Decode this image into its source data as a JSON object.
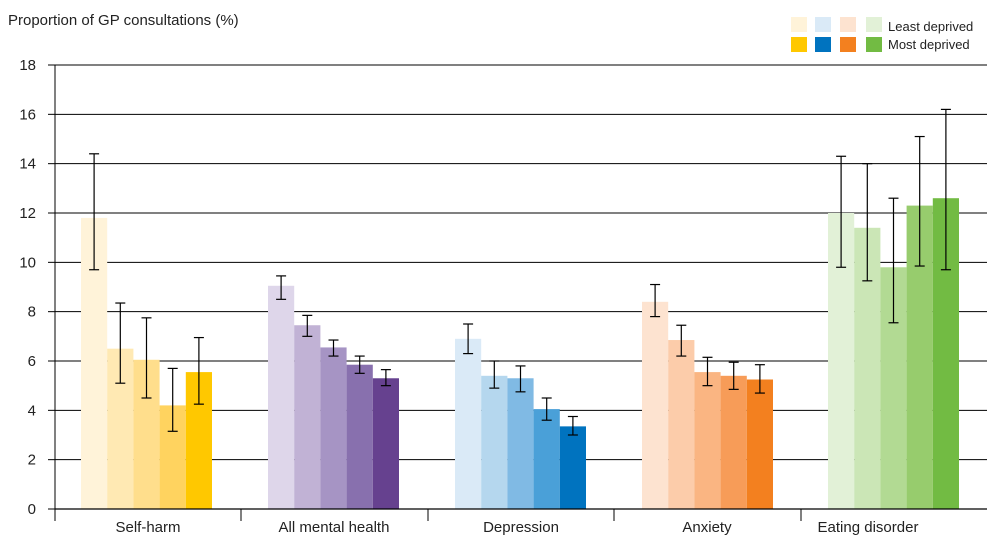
{
  "chart_data": {
    "type": "bar",
    "title": "",
    "ylabel": "Proportion of GP consultations (%)",
    "xlabel": "",
    "ylim": [
      0,
      18
    ],
    "yticks": [
      0,
      2,
      4,
      6,
      8,
      10,
      12,
      14,
      16,
      18
    ],
    "grid": "horizontal",
    "error_bars": true,
    "legend": {
      "placement": "top-right",
      "entries": [
        "Least deprived",
        "Most deprived"
      ]
    },
    "categories": [
      "Self-harm",
      "All mental health",
      "Depression",
      "Anxiety",
      "Eating disorder"
    ],
    "series_note": "five deprivation quintiles per category, light (least deprived) to dark (most deprived)",
    "groups": [
      {
        "category": "Self-harm",
        "colors": [
          "#fff3d9",
          "#ffe9b3",
          "#ffde8c",
          "#ffd35f",
          "#ffc800"
        ],
        "values": [
          11.8,
          6.5,
          6.05,
          4.2,
          5.55
        ],
        "error_low": [
          9.7,
          5.1,
          4.5,
          3.15,
          4.25
        ],
        "error_high": [
          14.4,
          8.35,
          7.75,
          5.7,
          6.95
        ]
      },
      {
        "category": "All mental health",
        "colors": [
          "#ded6ea",
          "#c1b2d5",
          "#a694c4",
          "#8870ae",
          "#66418f"
        ],
        "values": [
          9.05,
          7.45,
          6.55,
          5.85,
          5.3
        ],
        "error_low": [
          8.5,
          7.0,
          6.2,
          5.5,
          5.0
        ],
        "error_high": [
          9.45,
          7.85,
          6.85,
          6.2,
          5.65
        ]
      },
      {
        "category": "Depression",
        "colors": [
          "#daeaf7",
          "#b5d7ee",
          "#80bae4",
          "#4aa0d8",
          "#0073bf"
        ],
        "values": [
          6.9,
          5.4,
          5.3,
          4.05,
          3.35
        ],
        "error_low": [
          6.3,
          4.9,
          4.75,
          3.6,
          3.0
        ],
        "error_high": [
          7.5,
          6.0,
          5.8,
          4.5,
          3.75
        ]
      },
      {
        "category": "Anxiety",
        "colors": [
          "#fde3d0",
          "#fcccaa",
          "#fab582",
          "#f79c58",
          "#f3801f"
        ],
        "values": [
          8.4,
          6.85,
          5.55,
          5.4,
          5.25
        ],
        "error_low": [
          7.8,
          6.2,
          5.0,
          4.85,
          4.7
        ],
        "error_high": [
          9.1,
          7.45,
          6.15,
          5.95,
          5.85
        ]
      },
      {
        "category": "Eating disorder",
        "colors": [
          "#e2f1d7",
          "#cbe6b6",
          "#b2da93",
          "#97cc6d",
          "#72bb43"
        ],
        "values": [
          12.0,
          11.4,
          9.8,
          12.3,
          12.6
        ],
        "error_low": [
          9.8,
          9.25,
          7.55,
          9.85,
          9.7
        ],
        "error_high": [
          14.3,
          14.0,
          12.6,
          15.1,
          16.2
        ]
      }
    ]
  },
  "legend_swatches": {
    "light": [
      "#fff3d9",
      "#daeaf7",
      "#fde3d0",
      "#e2f1d7"
    ],
    "dark": [
      "#ffc800",
      "#0073bf",
      "#f3801f",
      "#72bb43"
    ]
  }
}
